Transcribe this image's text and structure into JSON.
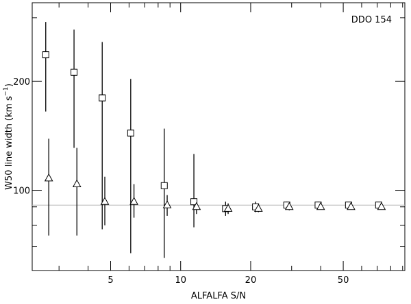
{
  "chart_data": {
    "type": "scatter",
    "title": "",
    "annotation": "DDO 154",
    "xlabel": "ALFALFA S/N",
    "ylabel_main": "W50 line width (km s",
    "ylabel_sup": "−1",
    "ylabel_close": ")",
    "x_scale": "log",
    "y_scale": "log",
    "xlim": [
      2.3,
      92
    ],
    "ylim": [
      60,
      330
    ],
    "x_ticks": [
      {
        "value": 5,
        "label": "5"
      },
      {
        "value": 10,
        "label": "10"
      },
      {
        "value": 20,
        "label": "20"
      },
      {
        "value": 50,
        "label": "50"
      }
    ],
    "y_ticks": [
      {
        "value": 100,
        "label": "100"
      },
      {
        "value": 200,
        "label": "200"
      }
    ],
    "reference_line": {
      "y": 91,
      "color": "#b4b4b4"
    },
    "series": [
      {
        "marker": "square",
        "points": [
          {
            "x": 2.63,
            "y": 237,
            "yerr_lo": 165,
            "yerr_hi": 292
          },
          {
            "x": 3.48,
            "y": 212,
            "yerr_lo": 131,
            "yerr_hi": 278
          },
          {
            "x": 4.6,
            "y": 180,
            "yerr_lo": 78,
            "yerr_hi": 257
          },
          {
            "x": 6.1,
            "y": 144,
            "yerr_lo": 67,
            "yerr_hi": 203
          },
          {
            "x": 8.5,
            "y": 103,
            "yerr_lo": 65,
            "yerr_hi": 148
          },
          {
            "x": 11.4,
            "y": 93,
            "yerr_lo": 79,
            "yerr_hi": 126
          },
          {
            "x": 15.6,
            "y": 89,
            "yerr_lo": 85,
            "yerr_hi": 93
          },
          {
            "x": 21.0,
            "y": 90,
            "yerr_lo": 87,
            "yerr_hi": 93
          },
          {
            "x": 28.6,
            "y": 91,
            "yerr_lo": 89,
            "yerr_hi": 93
          },
          {
            "x": 39.0,
            "y": 91,
            "yerr_lo": 90,
            "yerr_hi": 93
          },
          {
            "x": 52.7,
            "y": 91,
            "yerr_lo": 90,
            "yerr_hi": 92
          },
          {
            "x": 71.0,
            "y": 91,
            "yerr_lo": 90,
            "yerr_hi": 92
          }
        ]
      },
      {
        "marker": "triangle",
        "points": [
          {
            "x": 2.71,
            "y": 108,
            "yerr_lo": 75,
            "yerr_hi": 139
          },
          {
            "x": 3.58,
            "y": 104,
            "yerr_lo": 75,
            "yerr_hi": 131
          },
          {
            "x": 4.72,
            "y": 93,
            "yerr_lo": 80,
            "yerr_hi": 109
          },
          {
            "x": 6.3,
            "y": 93,
            "yerr_lo": 84,
            "yerr_hi": 104
          },
          {
            "x": 8.75,
            "y": 91,
            "yerr_lo": 85,
            "yerr_hi": 97
          },
          {
            "x": 11.7,
            "y": 90,
            "yerr_lo": 86,
            "yerr_hi": 94
          },
          {
            "x": 16.0,
            "y": 89,
            "yerr_lo": 86,
            "yerr_hi": 92
          },
          {
            "x": 21.6,
            "y": 89,
            "yerr_lo": 87,
            "yerr_hi": 91
          },
          {
            "x": 29.3,
            "y": 90,
            "yerr_lo": 88,
            "yerr_hi": 91
          },
          {
            "x": 40.0,
            "y": 90,
            "yerr_lo": 89,
            "yerr_hi": 91
          },
          {
            "x": 54.0,
            "y": 90,
            "yerr_lo": 89,
            "yerr_hi": 91
          },
          {
            "x": 73.0,
            "y": 90,
            "yerr_lo": 89,
            "yerr_hi": 91
          }
        ]
      }
    ]
  }
}
